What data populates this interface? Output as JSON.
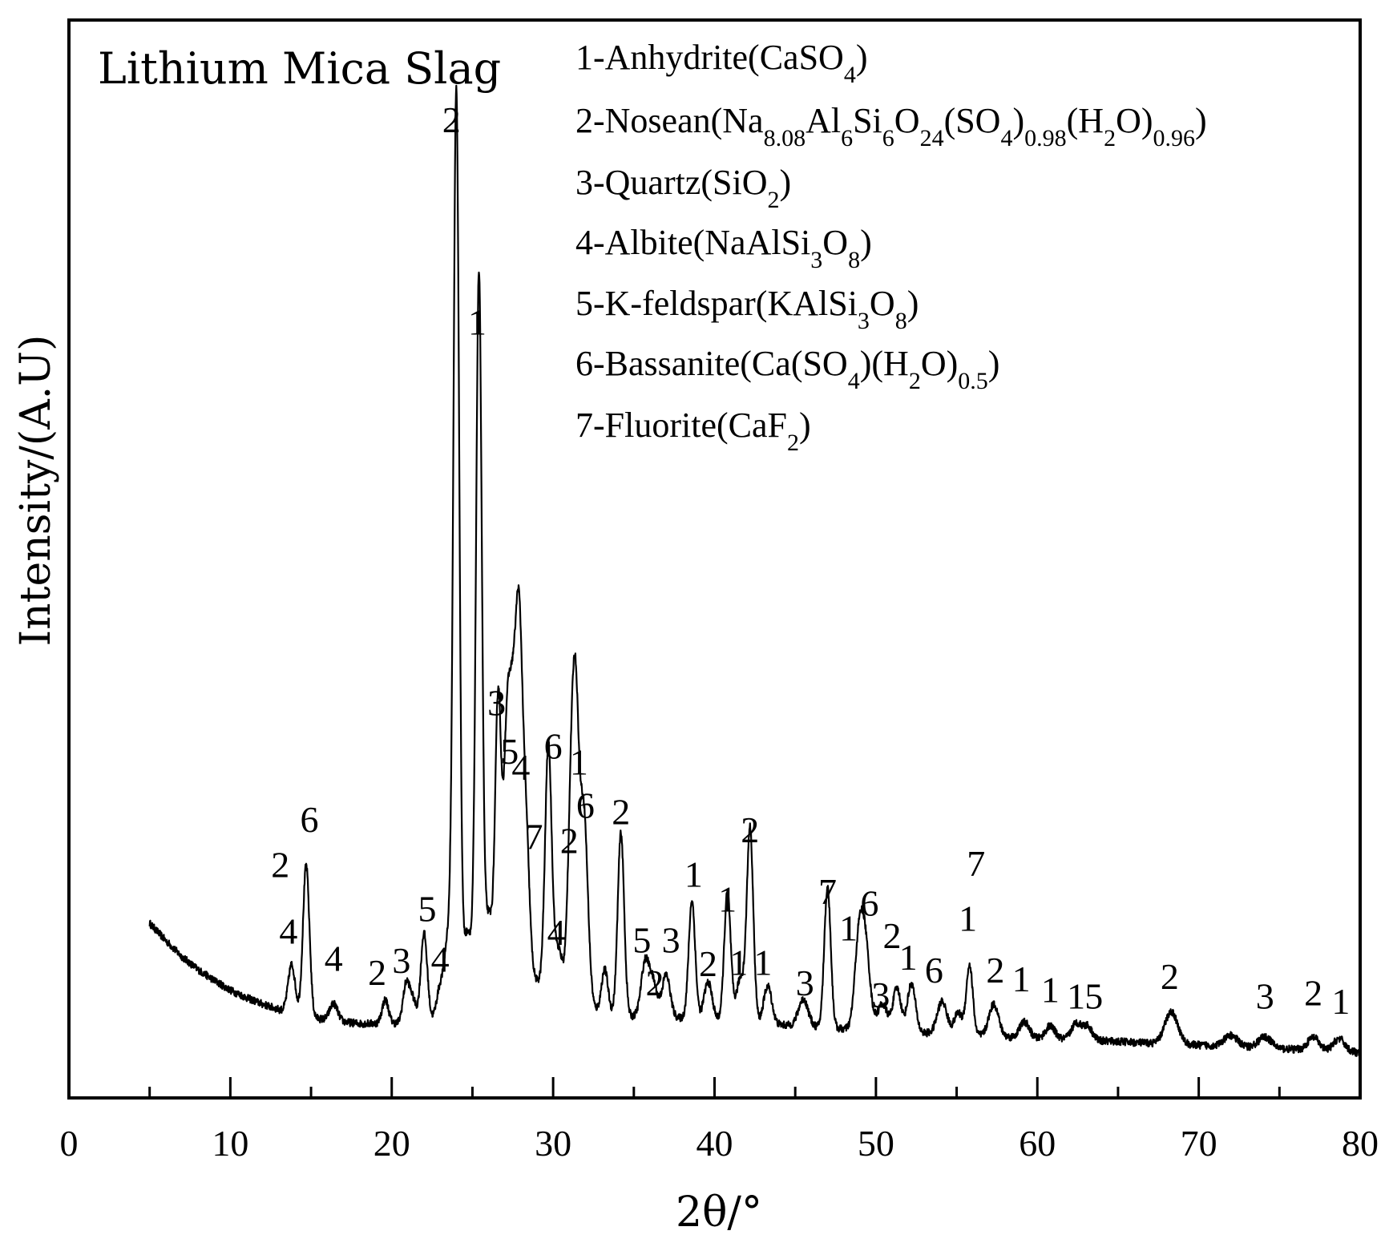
{
  "chart_data": {
    "type": "line",
    "title": "Lithium Mica Slag",
    "xlabel": "2θ/°",
    "ylabel": "Intensity/(A.U)",
    "xlim": [
      0,
      80
    ],
    "ylim": [
      0,
      100
    ],
    "x_ticks": [
      0,
      10,
      20,
      30,
      40,
      50,
      60,
      70,
      80
    ],
    "x_tick_labels": [
      "0",
      "10",
      "20",
      "30",
      "40",
      "50",
      "60",
      "70",
      "80"
    ],
    "y_ticks_shown": false,
    "grid": false,
    "legend_position": "top-right",
    "legend": [
      {
        "id": "1",
        "text": "1-Anhydrite(CaSO₄)"
      },
      {
        "id": "2",
        "text": "2-Nosean(Na₈.₀₈Al₆Si₆O₂₄(SO₄)₀.₉₈(H₂O)₀.₉₆)"
      },
      {
        "id": "3",
        "text": "3-Quartz(SiO₂)"
      },
      {
        "id": "4",
        "text": "4-Albite(NaAlSi₃O₈)"
      },
      {
        "id": "5",
        "text": "5-K-feldspar(KAlSi₃O₈)"
      },
      {
        "id": "6",
        "text": "6-Bassanite(Ca(SO₄)(H₂O)₀.₅)"
      },
      {
        "id": "7",
        "text": "7-Fluorite(CaF₂)"
      }
    ],
    "background": {
      "x": [
        5,
        6,
        7,
        8,
        9,
        10,
        11,
        12,
        13,
        14,
        16,
        18,
        20,
        22,
        24,
        26,
        28,
        30,
        32,
        34,
        36,
        38,
        40,
        44,
        48,
        52,
        56,
        60,
        64,
        68,
        72,
        76,
        80
      ],
      "y": [
        16.2,
        14.6,
        13.1,
        11.9,
        10.9,
        10.0,
        9.3,
        8.7,
        8.2,
        7.8,
        7.2,
        6.9,
        6.9,
        7.1,
        7.7,
        10.0,
        11.5,
        10.2,
        8.4,
        7.6,
        7.5,
        7.4,
        7.2,
        6.8,
        6.4,
        6.1,
        5.8,
        5.5,
        5.3,
        5.0,
        4.8,
        4.5,
        4.2
      ]
    },
    "peaks": [
      {
        "x": 13.8,
        "h": 4.5,
        "w": 0.22
      },
      {
        "x": 14.7,
        "h": 14.0,
        "w": 0.2
      },
      {
        "x": 16.4,
        "h": 1.6,
        "w": 0.25
      },
      {
        "x": 19.6,
        "h": 2.2,
        "w": 0.2
      },
      {
        "x": 20.9,
        "h": 3.6,
        "w": 0.2
      },
      {
        "x": 21.3,
        "h": 2.0,
        "w": 0.2
      },
      {
        "x": 22.0,
        "h": 8.2,
        "w": 0.2
      },
      {
        "x": 23.0,
        "h": 2.8,
        "w": 0.22
      },
      {
        "x": 23.5,
        "h": 7.2,
        "w": 0.22
      },
      {
        "x": 24.0,
        "h": 85.0,
        "w": 0.18
      },
      {
        "x": 24.7,
        "h": 7.0,
        "w": 0.3
      },
      {
        "x": 25.4,
        "h": 66.0,
        "w": 0.18
      },
      {
        "x": 26.0,
        "h": 7.0,
        "w": 0.3
      },
      {
        "x": 26.6,
        "h": 26.0,
        "w": 0.18
      },
      {
        "x": 27.1,
        "h": 18.0,
        "w": 0.2
      },
      {
        "x": 27.5,
        "h": 24.0,
        "w": 0.25
      },
      {
        "x": 27.9,
        "h": 26.0,
        "w": 0.2
      },
      {
        "x": 28.3,
        "h": 14.0,
        "w": 0.22
      },
      {
        "x": 29.7,
        "h": 22.0,
        "w": 0.2
      },
      {
        "x": 30.3,
        "h": 4.0,
        "w": 0.3
      },
      {
        "x": 31.1,
        "h": 16.0,
        "w": 0.2
      },
      {
        "x": 31.4,
        "h": 24.0,
        "w": 0.2
      },
      {
        "x": 31.9,
        "h": 18.0,
        "w": 0.25
      },
      {
        "x": 33.2,
        "h": 4.0,
        "w": 0.2
      },
      {
        "x": 34.2,
        "h": 17.0,
        "w": 0.2
      },
      {
        "x": 35.7,
        "h": 5.0,
        "w": 0.25
      },
      {
        "x": 36.2,
        "h": 3.0,
        "w": 0.25
      },
      {
        "x": 37.0,
        "h": 4.0,
        "w": 0.25
      },
      {
        "x": 38.6,
        "h": 11.0,
        "w": 0.2
      },
      {
        "x": 39.6,
        "h": 3.5,
        "w": 0.25
      },
      {
        "x": 40.8,
        "h": 12.0,
        "w": 0.2
      },
      {
        "x": 41.6,
        "h": 4.0,
        "w": 0.25
      },
      {
        "x": 42.2,
        "h": 18.0,
        "w": 0.2
      },
      {
        "x": 43.3,
        "h": 3.5,
        "w": 0.25
      },
      {
        "x": 45.5,
        "h": 2.5,
        "w": 0.3
      },
      {
        "x": 47.0,
        "h": 13.0,
        "w": 0.2
      },
      {
        "x": 48.9,
        "h": 6.0,
        "w": 0.25
      },
      {
        "x": 49.3,
        "h": 8.5,
        "w": 0.3
      },
      {
        "x": 50.4,
        "h": 2.5,
        "w": 0.3
      },
      {
        "x": 51.3,
        "h": 4.0,
        "w": 0.25
      },
      {
        "x": 52.2,
        "h": 4.5,
        "w": 0.25
      },
      {
        "x": 54.1,
        "h": 3.0,
        "w": 0.3
      },
      {
        "x": 55.1,
        "h": 2.0,
        "w": 0.25
      },
      {
        "x": 55.8,
        "h": 6.5,
        "w": 0.2
      },
      {
        "x": 57.3,
        "h": 3.0,
        "w": 0.3
      },
      {
        "x": 59.2,
        "h": 1.5,
        "w": 0.3
      },
      {
        "x": 60.8,
        "h": 1.2,
        "w": 0.3
      },
      {
        "x": 62.4,
        "h": 1.5,
        "w": 0.3
      },
      {
        "x": 63.1,
        "h": 1.3,
        "w": 0.3
      },
      {
        "x": 68.3,
        "h": 3.0,
        "w": 0.4
      },
      {
        "x": 72.0,
        "h": 1.0,
        "w": 0.4
      },
      {
        "x": 74.1,
        "h": 1.0,
        "w": 0.4
      },
      {
        "x": 77.1,
        "h": 1.2,
        "w": 0.35
      },
      {
        "x": 78.7,
        "h": 1.2,
        "w": 0.35
      }
    ],
    "noise_amplitude": 0.35,
    "peak_labels": [
      {
        "text": "2",
        "x": 13.1,
        "y": 20.5
      },
      {
        "text": "4",
        "x": 13.6,
        "y": 14.3
      },
      {
        "text": "6",
        "x": 14.9,
        "y": 24.7
      },
      {
        "text": "4",
        "x": 16.4,
        "y": 11.8
      },
      {
        "text": "2",
        "x": 19.1,
        "y": 10.5
      },
      {
        "text": "3",
        "x": 20.6,
        "y": 11.6
      },
      {
        "text": "5",
        "x": 22.2,
        "y": 16.4
      },
      {
        "text": "4",
        "x": 23.0,
        "y": 11.7
      },
      {
        "text": "2",
        "x": 23.7,
        "y": 89.6
      },
      {
        "text": "1",
        "x": 25.3,
        "y": 70.8
      },
      {
        "text": "3",
        "x": 26.5,
        "y": 35.5
      },
      {
        "text": "5",
        "x": 27.3,
        "y": 31.0
      },
      {
        "text": "4",
        "x": 28.0,
        "y": 29.5
      },
      {
        "text": "7",
        "x": 28.8,
        "y": 23.1
      },
      {
        "text": "6",
        "x": 30.0,
        "y": 31.5
      },
      {
        "text": "4",
        "x": 30.2,
        "y": 14.2
      },
      {
        "text": "2",
        "x": 31.0,
        "y": 22.7
      },
      {
        "text": "1",
        "x": 31.6,
        "y": 30.0
      },
      {
        "text": "6",
        "x": 32.0,
        "y": 26.0
      },
      {
        "text": "2",
        "x": 34.2,
        "y": 25.4
      },
      {
        "text": "5",
        "x": 35.5,
        "y": 13.5
      },
      {
        "text": "2",
        "x": 36.3,
        "y": 9.5
      },
      {
        "text": "3",
        "x": 37.3,
        "y": 13.5
      },
      {
        "text": "1",
        "x": 38.7,
        "y": 19.6
      },
      {
        "text": "2",
        "x": 39.6,
        "y": 11.3
      },
      {
        "text": "1",
        "x": 40.8,
        "y": 17.3
      },
      {
        "text": "1",
        "x": 41.5,
        "y": 11.4
      },
      {
        "text": "2",
        "x": 42.2,
        "y": 23.7
      },
      {
        "text": "1",
        "x": 43.0,
        "y": 11.4
      },
      {
        "text": "3",
        "x": 45.6,
        "y": 9.5
      },
      {
        "text": "7",
        "x": 47.0,
        "y": 18.0
      },
      {
        "text": "1",
        "x": 48.3,
        "y": 14.6
      },
      {
        "text": "6",
        "x": 49.6,
        "y": 16.9
      },
      {
        "text": "3",
        "x": 50.3,
        "y": 8.4
      },
      {
        "text": "2",
        "x": 51.0,
        "y": 13.9
      },
      {
        "text": "1",
        "x": 52.0,
        "y": 11.9
      },
      {
        "text": "6",
        "x": 53.6,
        "y": 10.7
      },
      {
        "text": "7",
        "x": 56.2,
        "y": 20.6
      },
      {
        "text": "1",
        "x": 55.7,
        "y": 15.5
      },
      {
        "text": "2",
        "x": 57.4,
        "y": 10.7
      },
      {
        "text": "1",
        "x": 59.0,
        "y": 9.9
      },
      {
        "text": "1",
        "x": 60.8,
        "y": 8.9
      },
      {
        "text": "1",
        "x": 62.4,
        "y": 8.3
      },
      {
        "text": "5",
        "x": 63.5,
        "y": 8.3
      },
      {
        "text": "2",
        "x": 68.2,
        "y": 10.1
      },
      {
        "text": "3",
        "x": 74.1,
        "y": 8.3
      },
      {
        "text": "2",
        "x": 77.1,
        "y": 8.6
      },
      {
        "text": "1",
        "x": 78.8,
        "y": 7.8
      }
    ]
  }
}
